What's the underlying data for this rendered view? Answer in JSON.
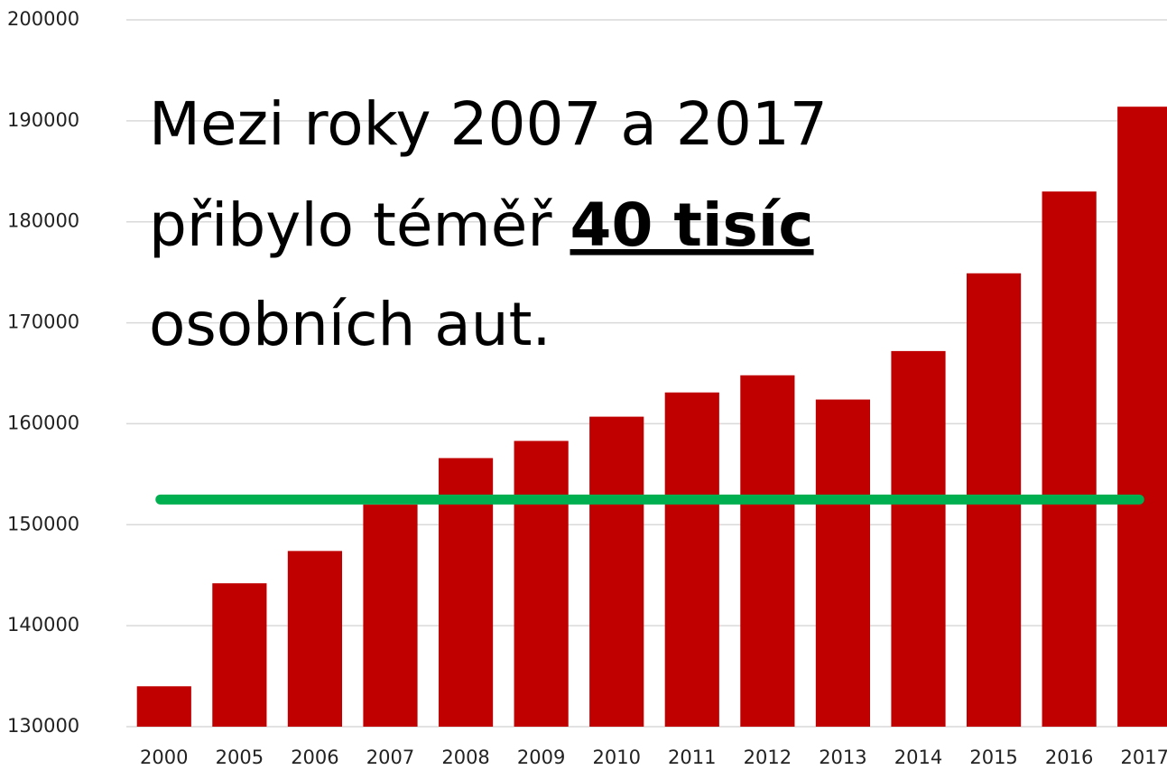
{
  "chart_data": {
    "type": "bar",
    "annotation": [
      "Mezi roky 2007 a 2017",
      "přibylo téměř",
      "40 tisíc",
      "osobních aut."
    ],
    "categories": [
      "2000",
      "2005",
      "2006",
      "2007",
      "2008",
      "2009",
      "2010",
      "2011",
      "2012",
      "2013",
      "2014",
      "2015",
      "2016",
      "2017"
    ],
    "values": [
      134000,
      144200,
      147400,
      152000,
      156600,
      158300,
      160700,
      163100,
      164800,
      162400,
      167200,
      174900,
      183000,
      191400
    ],
    "color": "#c00000",
    "ylim": [
      130000,
      200000
    ],
    "yticks": [
      130000,
      140000,
      150000,
      160000,
      170000,
      180000,
      190000,
      200000
    ],
    "grid": true,
    "reference_line": {
      "value": 152500,
      "color": "#00b050"
    }
  }
}
